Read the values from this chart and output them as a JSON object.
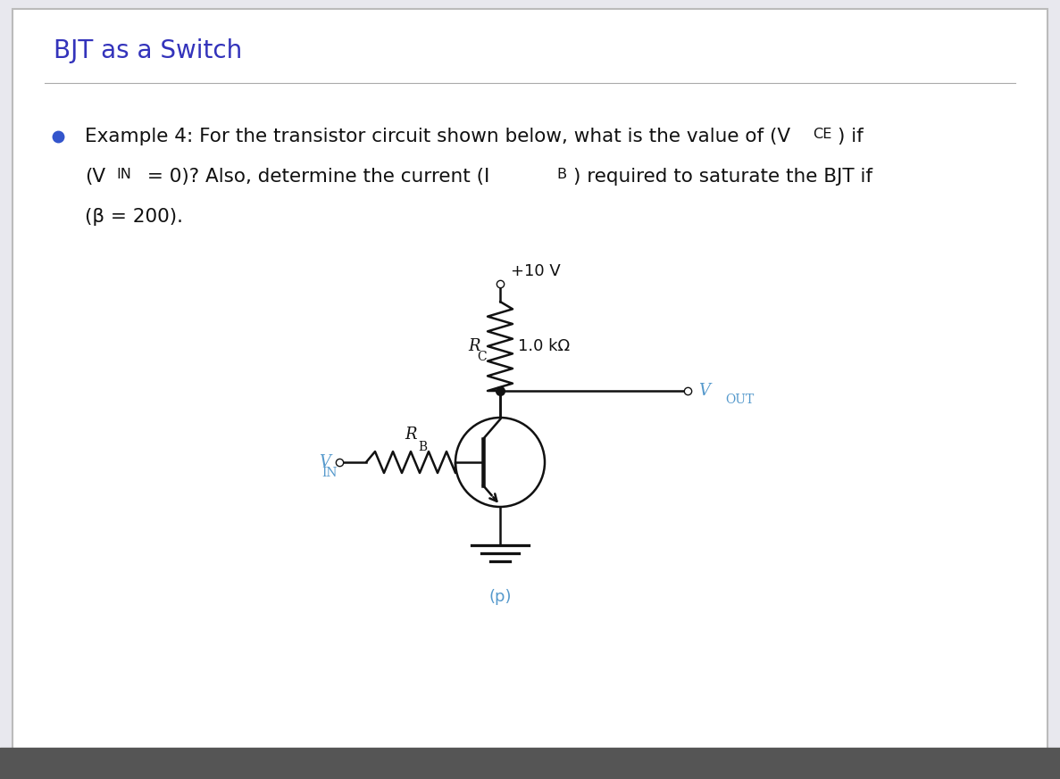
{
  "title": "BJT as a Switch",
  "title_color": "#3333bb",
  "title_fontsize": 20,
  "outer_bg": "#e8e8ee",
  "slide_bg": "#ffffff",
  "text_color": "#111111",
  "text_fontsize": 15.5,
  "bullet_color": "#3355cc",
  "circuit_color": "#111111",
  "blue_label_color": "#5599cc",
  "vcc_label": "+10 V",
  "rc_label": "R",
  "rc_sub": "C",
  "rc_value": "1.0 kΩ",
  "rb_label": "R",
  "rb_sub": "B",
  "vin_label": "V",
  "vin_sub": "IN",
  "vout_label": "V",
  "vout_sub": "OUT",
  "circuit_label_p": "(p)",
  "line1": "Example 4: For the transistor circuit shown below, what is the value of (V",
  "line1b": "CE",
  "line1c": ") if",
  "line2": "(V",
  "line2b": "IN",
  "line2c": " = 0)? Also, determine the current (I",
  "line2d": "B",
  "line2e": ") required to saturate the BJT if",
  "line3": "(β = 200)."
}
